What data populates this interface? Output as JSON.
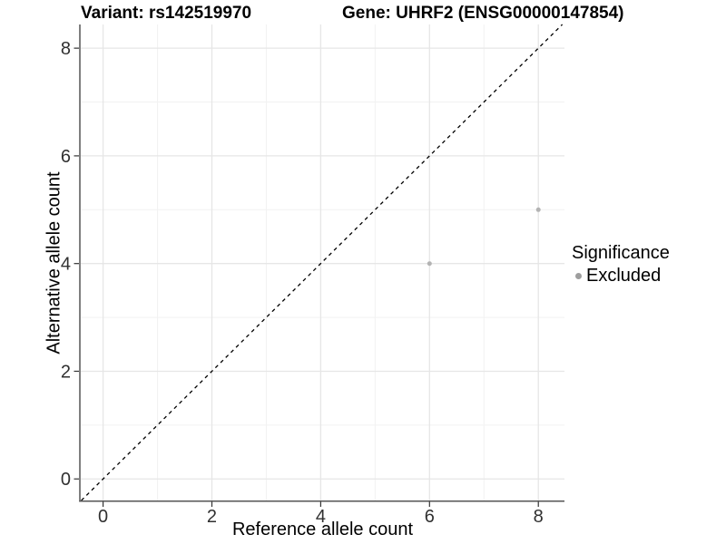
{
  "titles": {
    "variant": "Variant: rs142519970",
    "gene": "Gene: UHRF2 (ENSG00000147854)"
  },
  "chart_data": {
    "type": "scatter",
    "xlabel": "Reference allele count",
    "ylabel": "Alternative allele count",
    "xlim": [
      -0.41,
      8.48
    ],
    "ylim": [
      -0.4,
      8.44
    ],
    "x_ticks": [
      0,
      2,
      4,
      6,
      8
    ],
    "y_ticks": [
      0,
      2,
      4,
      6,
      8
    ],
    "x_minor_ticks": [
      1,
      3,
      5,
      7
    ],
    "y_minor_ticks": [
      1,
      3,
      5,
      7
    ],
    "grid": true,
    "reference_line": {
      "type": "abline",
      "slope": 1,
      "intercept": 0,
      "style": "dashed",
      "color": "#000000"
    },
    "series": [
      {
        "name": "Excluded",
        "color": "#b3b3b3",
        "points": [
          {
            "x": 6,
            "y": 4
          },
          {
            "x": 8,
            "y": 5
          }
        ]
      }
    ],
    "legend": {
      "title": "Significance",
      "position": "right",
      "items": [
        {
          "label": "Excluded",
          "color": "#9e9e9e"
        }
      ]
    }
  },
  "colors": {
    "background": "#ffffff",
    "grid_major": "#e6e6e6",
    "grid_minor": "#f2f2f2",
    "axis_line": "#555555",
    "tick_mark": "#333333",
    "tick_text": "#303030",
    "title_text": "#000000"
  }
}
